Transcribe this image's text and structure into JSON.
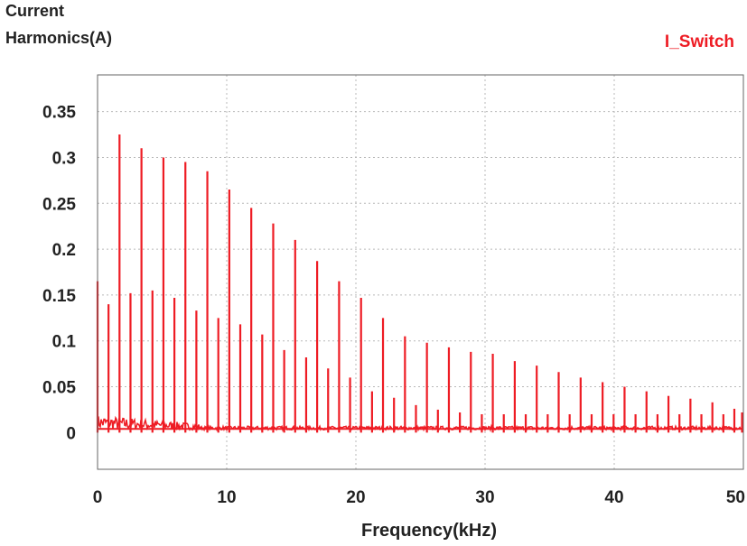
{
  "chart_data": {
    "type": "bar",
    "title": "",
    "ylabel_line1": "Current",
    "ylabel_line2": "Harmonics(A)",
    "xlabel": "Frequency(kHz)",
    "legend": [
      "I_Switch"
    ],
    "series_color": "#ee1c24",
    "xlim": [
      0,
      50
    ],
    "ylim": [
      -0.04,
      0.39
    ],
    "x_ticks": [
      "0",
      "10",
      "20",
      "30",
      "40",
      "50"
    ],
    "x_tick_values": [
      0,
      10,
      20,
      30,
      40,
      50
    ],
    "y_ticks": [
      "0",
      "0.05",
      "0.1",
      "0.15",
      "0.2",
      "0.25",
      "0.3",
      "0.35"
    ],
    "y_tick_values": [
      0,
      0.05,
      0.1,
      0.15,
      0.2,
      0.25,
      0.3,
      0.35
    ],
    "x_gridlines": [
      10,
      20,
      30,
      40
    ],
    "y_gridlines": [
      0.05,
      0.1,
      0.15,
      0.2,
      0.25,
      0.3,
      0.35
    ],
    "grid": true,
    "series": [
      {
        "name": "I_Switch",
        "x": [
          0,
          0.85,
          1.7,
          2.55,
          3.4,
          4.25,
          5.1,
          5.95,
          6.8,
          7.65,
          8.5,
          9.35,
          10.2,
          11.05,
          11.9,
          12.75,
          13.6,
          14.45,
          15.3,
          16.15,
          17.0,
          17.85,
          18.7,
          19.55,
          20.4,
          21.25,
          22.1,
          22.95,
          23.8,
          24.65,
          25.5,
          26.35,
          27.2,
          28.05,
          28.9,
          29.75,
          30.6,
          31.45,
          32.3,
          33.15,
          34.0,
          34.85,
          35.7,
          36.55,
          37.4,
          38.25,
          39.1,
          39.95,
          40.8,
          41.65,
          42.5,
          43.35,
          44.2,
          45.05,
          45.9,
          46.75,
          47.6,
          48.45,
          49.3,
          50.0
        ],
        "values": [
          0.165,
          0.14,
          0.325,
          0.152,
          0.31,
          0.155,
          0.3,
          0.147,
          0.295,
          0.133,
          0.285,
          0.125,
          0.265,
          0.118,
          0.245,
          0.107,
          0.228,
          0.09,
          0.21,
          0.082,
          0.187,
          0.07,
          0.165,
          0.06,
          0.147,
          0.045,
          0.125,
          0.038,
          0.105,
          0.03,
          0.098,
          0.025,
          0.093,
          0.022,
          0.088,
          0.02,
          0.086,
          0.02,
          0.078,
          0.02,
          0.073,
          0.02,
          0.066,
          0.02,
          0.06,
          0.02,
          0.055,
          0.02,
          0.05,
          0.02,
          0.045,
          0.02,
          0.04,
          0.02,
          0.037,
          0.02,
          0.033,
          0.02,
          0.026,
          0.022
        ]
      }
    ]
  }
}
